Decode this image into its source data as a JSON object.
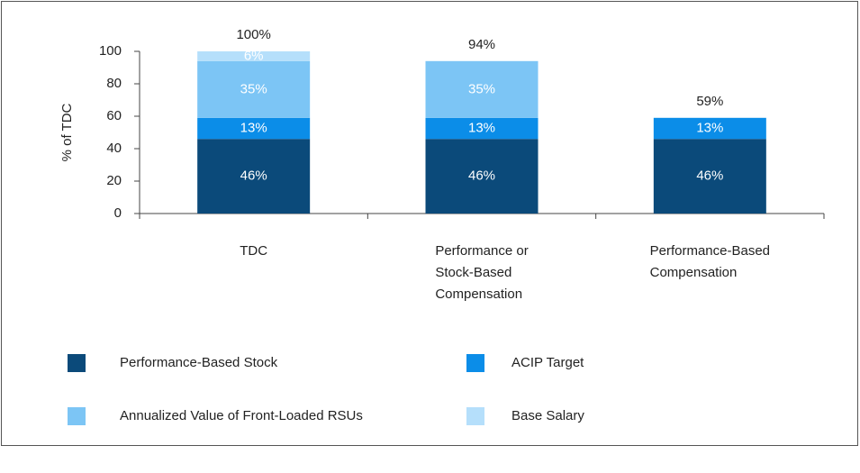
{
  "chart_data": {
    "type": "stacked_bar",
    "y_label": "% of TDC",
    "categories": [
      "TDC",
      "Performance or Stock-Based Compensation",
      "Performance-Based Compensation"
    ],
    "series": [
      {
        "name": "Performance-Based Stock",
        "color": "#0b4a7a",
        "values": [
          46,
          46,
          46
        ],
        "value_labels": [
          "46%",
          "46%",
          "46%"
        ]
      },
      {
        "name": "ACIP Target",
        "color": "#0b8de8",
        "values": [
          13,
          13,
          13
        ],
        "value_labels": [
          "13%",
          "13%",
          "13%"
        ]
      },
      {
        "name": "Annualized Value of Front-Loaded RSUs",
        "color": "#7cc5f5",
        "values": [
          35,
          35,
          null
        ],
        "value_labels": [
          "35%",
          "35%",
          null
        ]
      },
      {
        "name": "Base Salary",
        "color": "#b5dffb",
        "values": [
          6,
          null,
          null
        ],
        "value_labels": [
          "6%",
          null,
          null
        ]
      }
    ],
    "totals": [
      100,
      94,
      59
    ],
    "total_labels": [
      "100%",
      "94%",
      "59%"
    ],
    "ylim": [
      0,
      100
    ],
    "yticks": [
      0,
      20,
      40,
      60,
      80,
      100
    ]
  }
}
